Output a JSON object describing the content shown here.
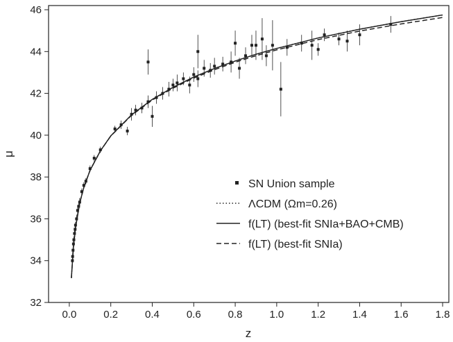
{
  "chart_data": {
    "type": "scatter",
    "x_label": "z",
    "y_label": "μ",
    "xlim": [
      -0.1,
      1.83
    ],
    "ylim": [
      32,
      46.2
    ],
    "xticks": [
      {
        "value": 0,
        "label": "0.0"
      },
      {
        "value": 0.2,
        "label": "0.2"
      },
      {
        "value": 0.4,
        "label": "0.4"
      },
      {
        "value": 0.6,
        "label": "0.6"
      },
      {
        "value": 0.8,
        "label": "0.8"
      },
      {
        "value": 1,
        "label": "1.0"
      },
      {
        "value": 1.2,
        "label": "1.2"
      },
      {
        "value": 1.4,
        "label": "1.4"
      },
      {
        "value": 1.6,
        "label": "1.6"
      },
      {
        "value": 1.8,
        "label": "1.8"
      }
    ],
    "yticks": [
      32,
      34,
      36,
      38,
      40,
      42,
      44,
      46
    ],
    "series": [
      {
        "name": "SN Union sample",
        "kind": "points",
        "color": "#222",
        "x": [
          0.015,
          0.016,
          0.018,
          0.02,
          0.022,
          0.025,
          0.028,
          0.03,
          0.035,
          0.04,
          0.045,
          0.05,
          0.06,
          0.07,
          0.08,
          0.1,
          0.12,
          0.15,
          0.22,
          0.25,
          0.28,
          0.3,
          0.32,
          0.35,
          0.38,
          0.4,
          0.42,
          0.45,
          0.48,
          0.5,
          0.52,
          0.55,
          0.58,
          0.6,
          0.62,
          0.65,
          0.68,
          0.7,
          0.74,
          0.78,
          0.8,
          0.82,
          0.85,
          0.88,
          0.9,
          0.93,
          0.95,
          0.98,
          1.02,
          1.05,
          1.12,
          1.17,
          1.2,
          1.23,
          1.3,
          1.34,
          1.4,
          1.55,
          0.38,
          0.62
        ],
        "values": [
          34.0,
          34.2,
          34.5,
          34.8,
          35.0,
          35.3,
          35.5,
          35.7,
          36.0,
          36.4,
          36.6,
          36.8,
          37.3,
          37.6,
          37.8,
          38.4,
          38.9,
          39.3,
          40.3,
          40.5,
          40.2,
          41.0,
          41.2,
          41.3,
          41.6,
          40.9,
          41.8,
          42.0,
          42.2,
          42.4,
          42.5,
          42.7,
          42.4,
          42.9,
          42.7,
          43.2,
          43.1,
          43.3,
          43.4,
          43.5,
          44.4,
          43.2,
          43.8,
          44.3,
          44.3,
          44.6,
          43.8,
          44.3,
          42.2,
          44.2,
          44.4,
          44.3,
          44.1,
          44.8,
          44.6,
          44.5,
          44.8,
          45.3,
          43.5,
          44.0
        ],
        "errors": [
          0.15,
          0.2,
          0.15,
          0.2,
          0.15,
          0.2,
          0.15,
          0.15,
          0.2,
          0.2,
          0.15,
          0.2,
          0.15,
          0.15,
          0.15,
          0.15,
          0.15,
          0.15,
          0.15,
          0.2,
          0.2,
          0.3,
          0.25,
          0.25,
          0.3,
          0.5,
          0.3,
          0.3,
          0.35,
          0.3,
          0.4,
          0.3,
          0.4,
          0.35,
          0.4,
          0.4,
          0.35,
          0.4,
          0.35,
          0.5,
          0.6,
          0.5,
          0.4,
          0.5,
          0.7,
          1.0,
          0.5,
          1.2,
          1.3,
          0.4,
          0.4,
          0.7,
          0.3,
          0.3,
          0.3,
          0.5,
          0.5,
          0.4,
          0.6,
          0.8
        ]
      },
      {
        "name": "ΛCDM (Ωm=0.26)",
        "kind": "line",
        "line_style": "dotted",
        "color": "#222",
        "x": [
          0.01,
          0.02,
          0.03,
          0.05,
          0.07,
          0.1,
          0.15,
          0.2,
          0.3,
          0.4,
          0.5,
          0.6,
          0.7,
          0.8,
          0.9,
          1.0,
          1.2,
          1.4,
          1.6,
          1.8
        ],
        "values": [
          33.17,
          34.68,
          35.6,
          36.74,
          37.5,
          38.32,
          39.25,
          39.97,
          40.97,
          41.71,
          42.29,
          42.78,
          43.19,
          43.55,
          43.87,
          44.15,
          44.65,
          45.07,
          45.43,
          45.75
        ]
      },
      {
        "name": "f(LT)  (best-fit SNIa+BAO+CMB)",
        "kind": "line",
        "line_style": "solid",
        "color": "#222",
        "x": [
          0.01,
          0.02,
          0.03,
          0.05,
          0.07,
          0.1,
          0.15,
          0.2,
          0.3,
          0.4,
          0.5,
          0.6,
          0.7,
          0.8,
          0.9,
          1.0,
          1.2,
          1.4,
          1.6,
          1.8
        ],
        "values": [
          33.17,
          34.68,
          35.6,
          36.74,
          37.5,
          38.32,
          39.25,
          39.97,
          40.97,
          41.71,
          42.29,
          42.78,
          43.19,
          43.55,
          43.87,
          44.15,
          44.65,
          45.07,
          45.43,
          45.75
        ]
      },
      {
        "name": "f(LT)  (best-fit SNIa)",
        "kind": "line",
        "line_style": "dashed",
        "color": "#222",
        "x": [
          0.01,
          0.02,
          0.03,
          0.05,
          0.07,
          0.1,
          0.15,
          0.2,
          0.3,
          0.4,
          0.5,
          0.6,
          0.7,
          0.8,
          0.9,
          1.0,
          1.2,
          1.4,
          1.6,
          1.8
        ],
        "values": [
          33.17,
          34.68,
          35.6,
          36.74,
          37.5,
          38.32,
          39.25,
          39.96,
          40.95,
          41.68,
          42.25,
          42.73,
          43.13,
          43.49,
          43.8,
          44.08,
          44.57,
          44.98,
          45.32,
          45.63
        ]
      }
    ]
  }
}
